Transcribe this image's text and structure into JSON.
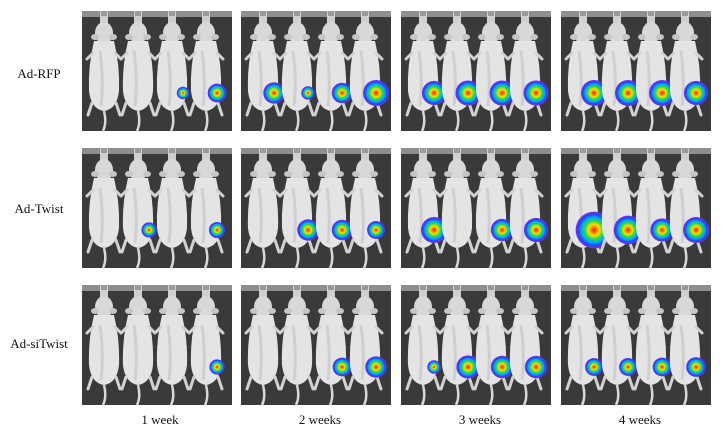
{
  "rows": [
    {
      "label": "Ad-RFP",
      "signals": [
        [
          0,
          0,
          0.25,
          0.6
        ],
        [
          0.75,
          0.3,
          0.7,
          1.0
        ],
        [
          0.9,
          0.95,
          0.95,
          0.95
        ],
        [
          1.0,
          1.0,
          1.0,
          0.9
        ]
      ]
    },
    {
      "label": "Ad-Twist",
      "signals": [
        [
          0,
          0.4,
          0,
          0.45
        ],
        [
          0,
          0.75,
          0.7,
          0.55
        ],
        [
          1.0,
          0,
          0.8,
          0.9
        ],
        [
          1.6,
          1.15,
          0.85,
          1.0
        ]
      ]
    },
    {
      "label": "Ad-siTwist",
      "signals": [
        [
          0,
          0,
          0,
          0.4
        ],
        [
          0,
          0,
          0.6,
          0.75
        ],
        [
          0.3,
          0.85,
          0.8,
          0.8
        ],
        [
          0.55,
          0.55,
          0.6,
          0.65
        ]
      ]
    }
  ],
  "columns": [
    "1 week",
    "2 weeks",
    "3 weeks",
    "4 weeks"
  ]
}
